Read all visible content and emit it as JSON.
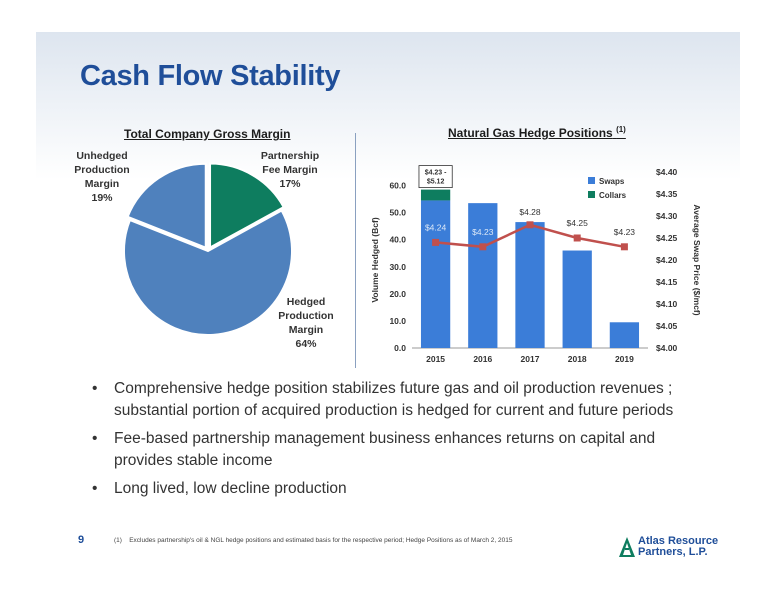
{
  "title": "Cash Flow Stability",
  "colors": {
    "brand": "#1f4e99",
    "pie_blue": "#4f81bd",
    "pie_green": "#0e7d5f",
    "swaps": "#3b7dd8",
    "collars": "#0e7d5f",
    "line": "#c0504d"
  },
  "pie_chart": {
    "title": "Total Company Gross Margin",
    "slices": [
      {
        "label_lines": [
          "Partnership",
          "Fee Margin",
          "17%"
        ],
        "value": 17,
        "color": "#0e7d5f"
      },
      {
        "label_lines": [
          "Hedged",
          "Production",
          "Margin",
          "64%"
        ],
        "value": 64,
        "color": "#4f81bd"
      },
      {
        "label_lines": [
          "Unhedged",
          "Production",
          "Margin",
          "19%"
        ],
        "value": 19,
        "color": "#4f81bd"
      }
    ]
  },
  "chart_data": {
    "type": "bar",
    "title": "Natural Gas Hedge Positions",
    "title_sup": "(1)",
    "categories": [
      "2015",
      "2016",
      "2017",
      "2018",
      "2019"
    ],
    "ylabel": "Volume Hedged (Bcf)",
    "ylabel2": "Average Swap Price ($/mcf)",
    "ylim": [
      0,
      65
    ],
    "y2lim": [
      4.0,
      4.4
    ],
    "yticks": [
      "0.0",
      "10.0",
      "20.0",
      "30.0",
      "40.0",
      "50.0",
      "60.0"
    ],
    "y2ticks": [
      "$4.00",
      "$4.05",
      "$4.10",
      "$4.15",
      "$4.20",
      "$4.25",
      "$4.30",
      "$4.35",
      "$4.40"
    ],
    "series": [
      {
        "name": "Swaps",
        "kind": "bar",
        "values": [
          54.5,
          53.5,
          46.5,
          36,
          9.5
        ],
        "color": "#3b7dd8"
      },
      {
        "name": "Collars",
        "kind": "bar-stack",
        "values": [
          4,
          0,
          0,
          0,
          0
        ],
        "color": "#0e7d5f"
      },
      {
        "kind": "line",
        "axis": "right",
        "values": [
          4.24,
          4.23,
          4.28,
          4.25,
          4.23
        ],
        "color": "#c0504d"
      }
    ],
    "data_labels": [
      "$4.24",
      "$4.23",
      "$4.28",
      "$4.25",
      "$4.23"
    ],
    "collar_label_lines": [
      "$4.23 -",
      "$5.12"
    ],
    "legend_position": "top-right"
  },
  "bullets": [
    "Comprehensive hedge position stabilizes future gas and oil production revenues ; substantial portion  of acquired production is hedged for current and future periods",
    "Fee-based partnership management business enhances returns on capital and provides stable income",
    "Long lived, low decline production"
  ],
  "bullet_symbol": "•",
  "footnote_num": "(1)",
  "footnote": "Excludes partnership's oil & NGL hedge positions and estimated basis for the respective period; Hedge Positions as of March 2, 2015",
  "page_number": "9",
  "logo": {
    "line1": "Atlas Resource",
    "line2": "Partners, L.P."
  }
}
